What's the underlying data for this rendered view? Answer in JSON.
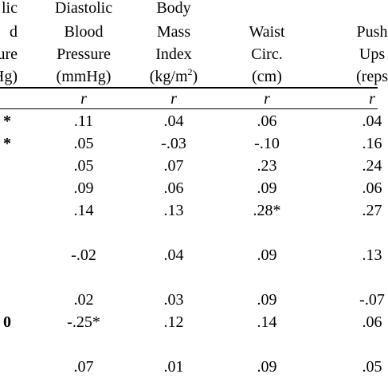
{
  "table": {
    "header": [
      {
        "lines": [
          "lic",
          "d",
          "ure",
          "Hg)"
        ]
      },
      {
        "lines": [
          "Diastolic",
          "Blood",
          "Pressure",
          "(mmHg)"
        ]
      },
      {
        "lines": [
          "Body",
          "Mass",
          "Index"
        ],
        "unit": [
          "(kg/m",
          "2",
          ")"
        ]
      },
      {
        "lines": [
          "",
          "Waist",
          "Circ.",
          "(cm)"
        ]
      },
      {
        "lines": [
          "",
          "Push",
          "Ups",
          "(reps"
        ]
      }
    ],
    "stat_row": [
      "",
      "r",
      "r",
      "r",
      "r"
    ],
    "rows": [
      [
        "*",
        ".11",
        ".04",
        ".06",
        ".04"
      ],
      [
        "*",
        ".05",
        "-.03",
        "-.10",
        ".16"
      ],
      [
        "",
        ".05",
        ".07",
        ".23",
        ".24"
      ],
      [
        "",
        ".09",
        ".06",
        ".09",
        ".06"
      ],
      [
        "",
        ".14",
        ".13",
        ".28*",
        ".27"
      ],
      [
        "",
        "-.02",
        ".04",
        ".09",
        ".13"
      ],
      [
        "",
        ".02",
        ".03",
        ".09",
        "-.07"
      ],
      [
        "0",
        "-.25*",
        ".12",
        ".14",
        ".06"
      ],
      [
        "",
        ".07",
        ".01",
        ".09",
        ".05"
      ]
    ]
  }
}
